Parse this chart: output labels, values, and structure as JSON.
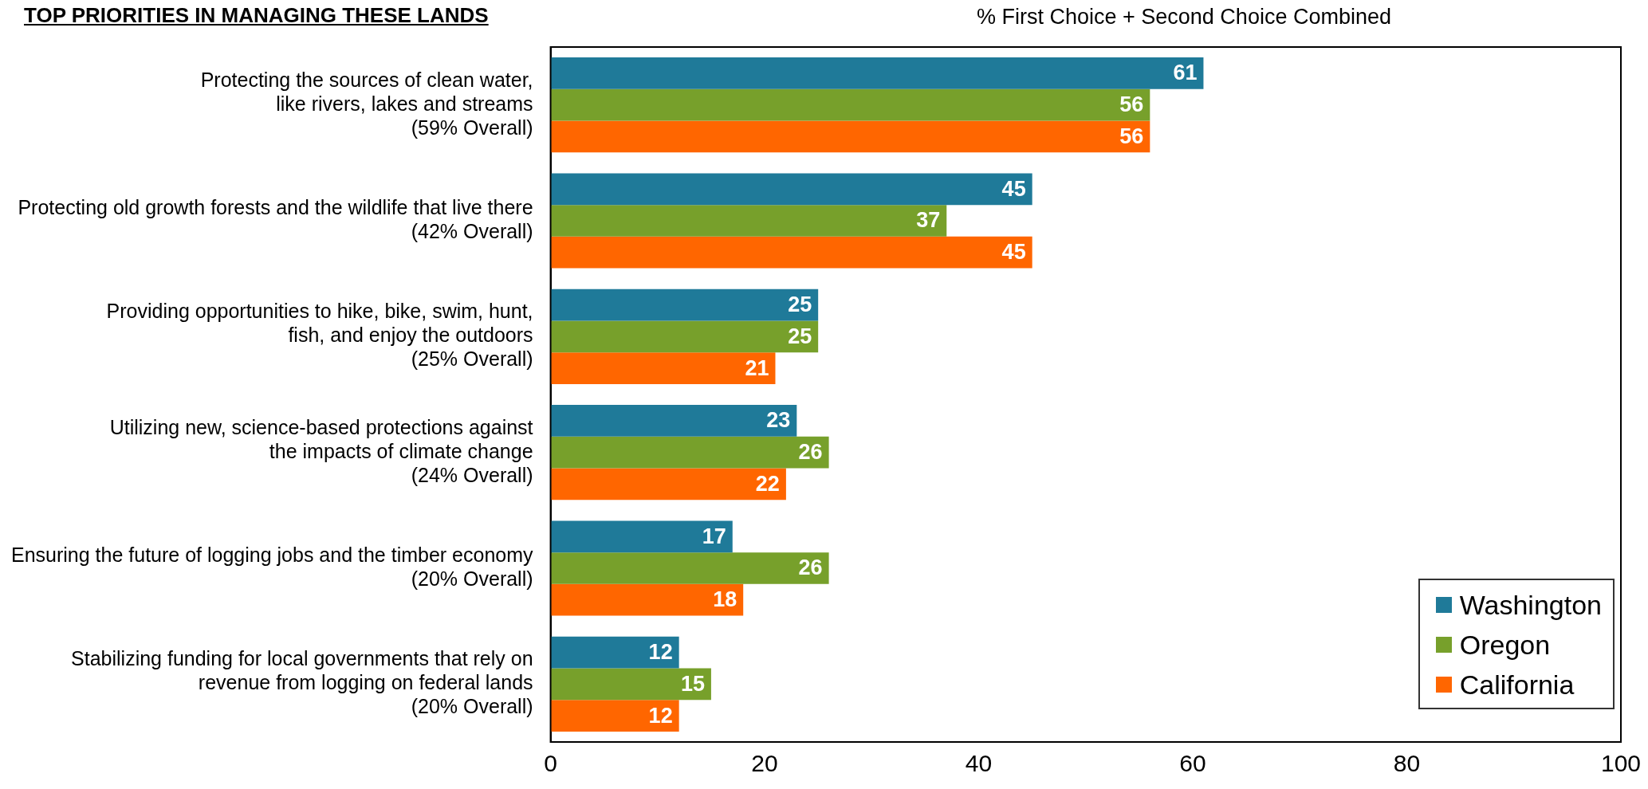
{
  "chart_data": {
    "type": "bar",
    "orientation": "horizontal",
    "title": "TOP PRIORITIES IN MANAGING THESE LANDS",
    "subtitle": "% First Choice + Second Choice Combined",
    "categories": [
      "Protecting the sources of clean water,\nlike rivers, lakes and streams\n(59% Overall)",
      "Protecting old growth forests and the wildlife that live there\n(42% Overall)",
      "Providing opportunities to hike, bike, swim, hunt,\nfish, and enjoy the outdoors\n(25% Overall)",
      "Utilizing new, science-based protections against\nthe impacts of climate change\n(24% Overall)",
      "Ensuring the future of logging jobs and the timber economy\n(20% Overall)",
      "Stabilizing funding for local governments that rely on\nrevenue from logging on federal lands\n(20% Overall)"
    ],
    "series": [
      {
        "name": "Washington",
        "color": "#1f7a99",
        "values": [
          61,
          45,
          25,
          23,
          17,
          12
        ]
      },
      {
        "name": "Oregon",
        "color": "#77a02b",
        "values": [
          56,
          37,
          25,
          26,
          26,
          15
        ]
      },
      {
        "name": "California",
        "color": "#ff6600",
        "values": [
          56,
          45,
          21,
          22,
          18,
          12
        ]
      }
    ],
    "xlim": [
      0,
      100
    ],
    "xticks": [
      0,
      20,
      40,
      60,
      80,
      100
    ],
    "grid": false,
    "legend": "bottom right",
    "data_labels": true
  }
}
